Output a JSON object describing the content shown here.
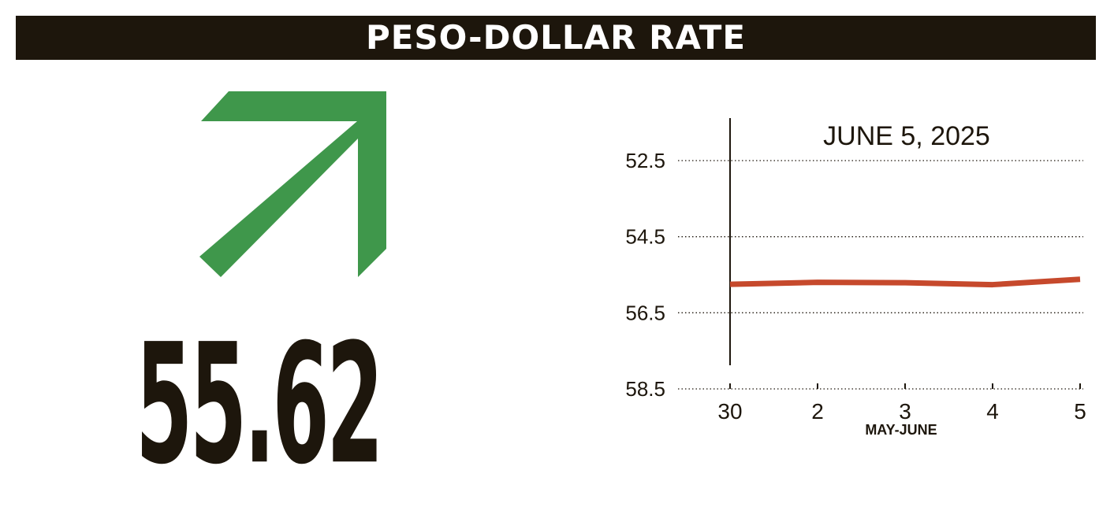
{
  "header": {
    "title": "PESO-DOLLAR RATE"
  },
  "indicator": {
    "direction": "up",
    "icon": "arrow-up-right-icon",
    "color": "#3f974b",
    "value": "55.62"
  },
  "chart_data": {
    "type": "line",
    "title": "JUNE 5, 2025",
    "xlabel": "MAY-JUNE",
    "ylabel": "",
    "categories": [
      "30",
      "2",
      "3",
      "4",
      "5"
    ],
    "yticks": [
      "52.5",
      "54.5",
      "56.5",
      "58.5"
    ],
    "ylim": [
      52.5,
      58.5
    ],
    "y_inverted": true,
    "grid": true,
    "series": [
      {
        "values": [
          55.75,
          55.7,
          55.71,
          55.76,
          55.62
        ],
        "color": "#c6492c"
      }
    ]
  }
}
